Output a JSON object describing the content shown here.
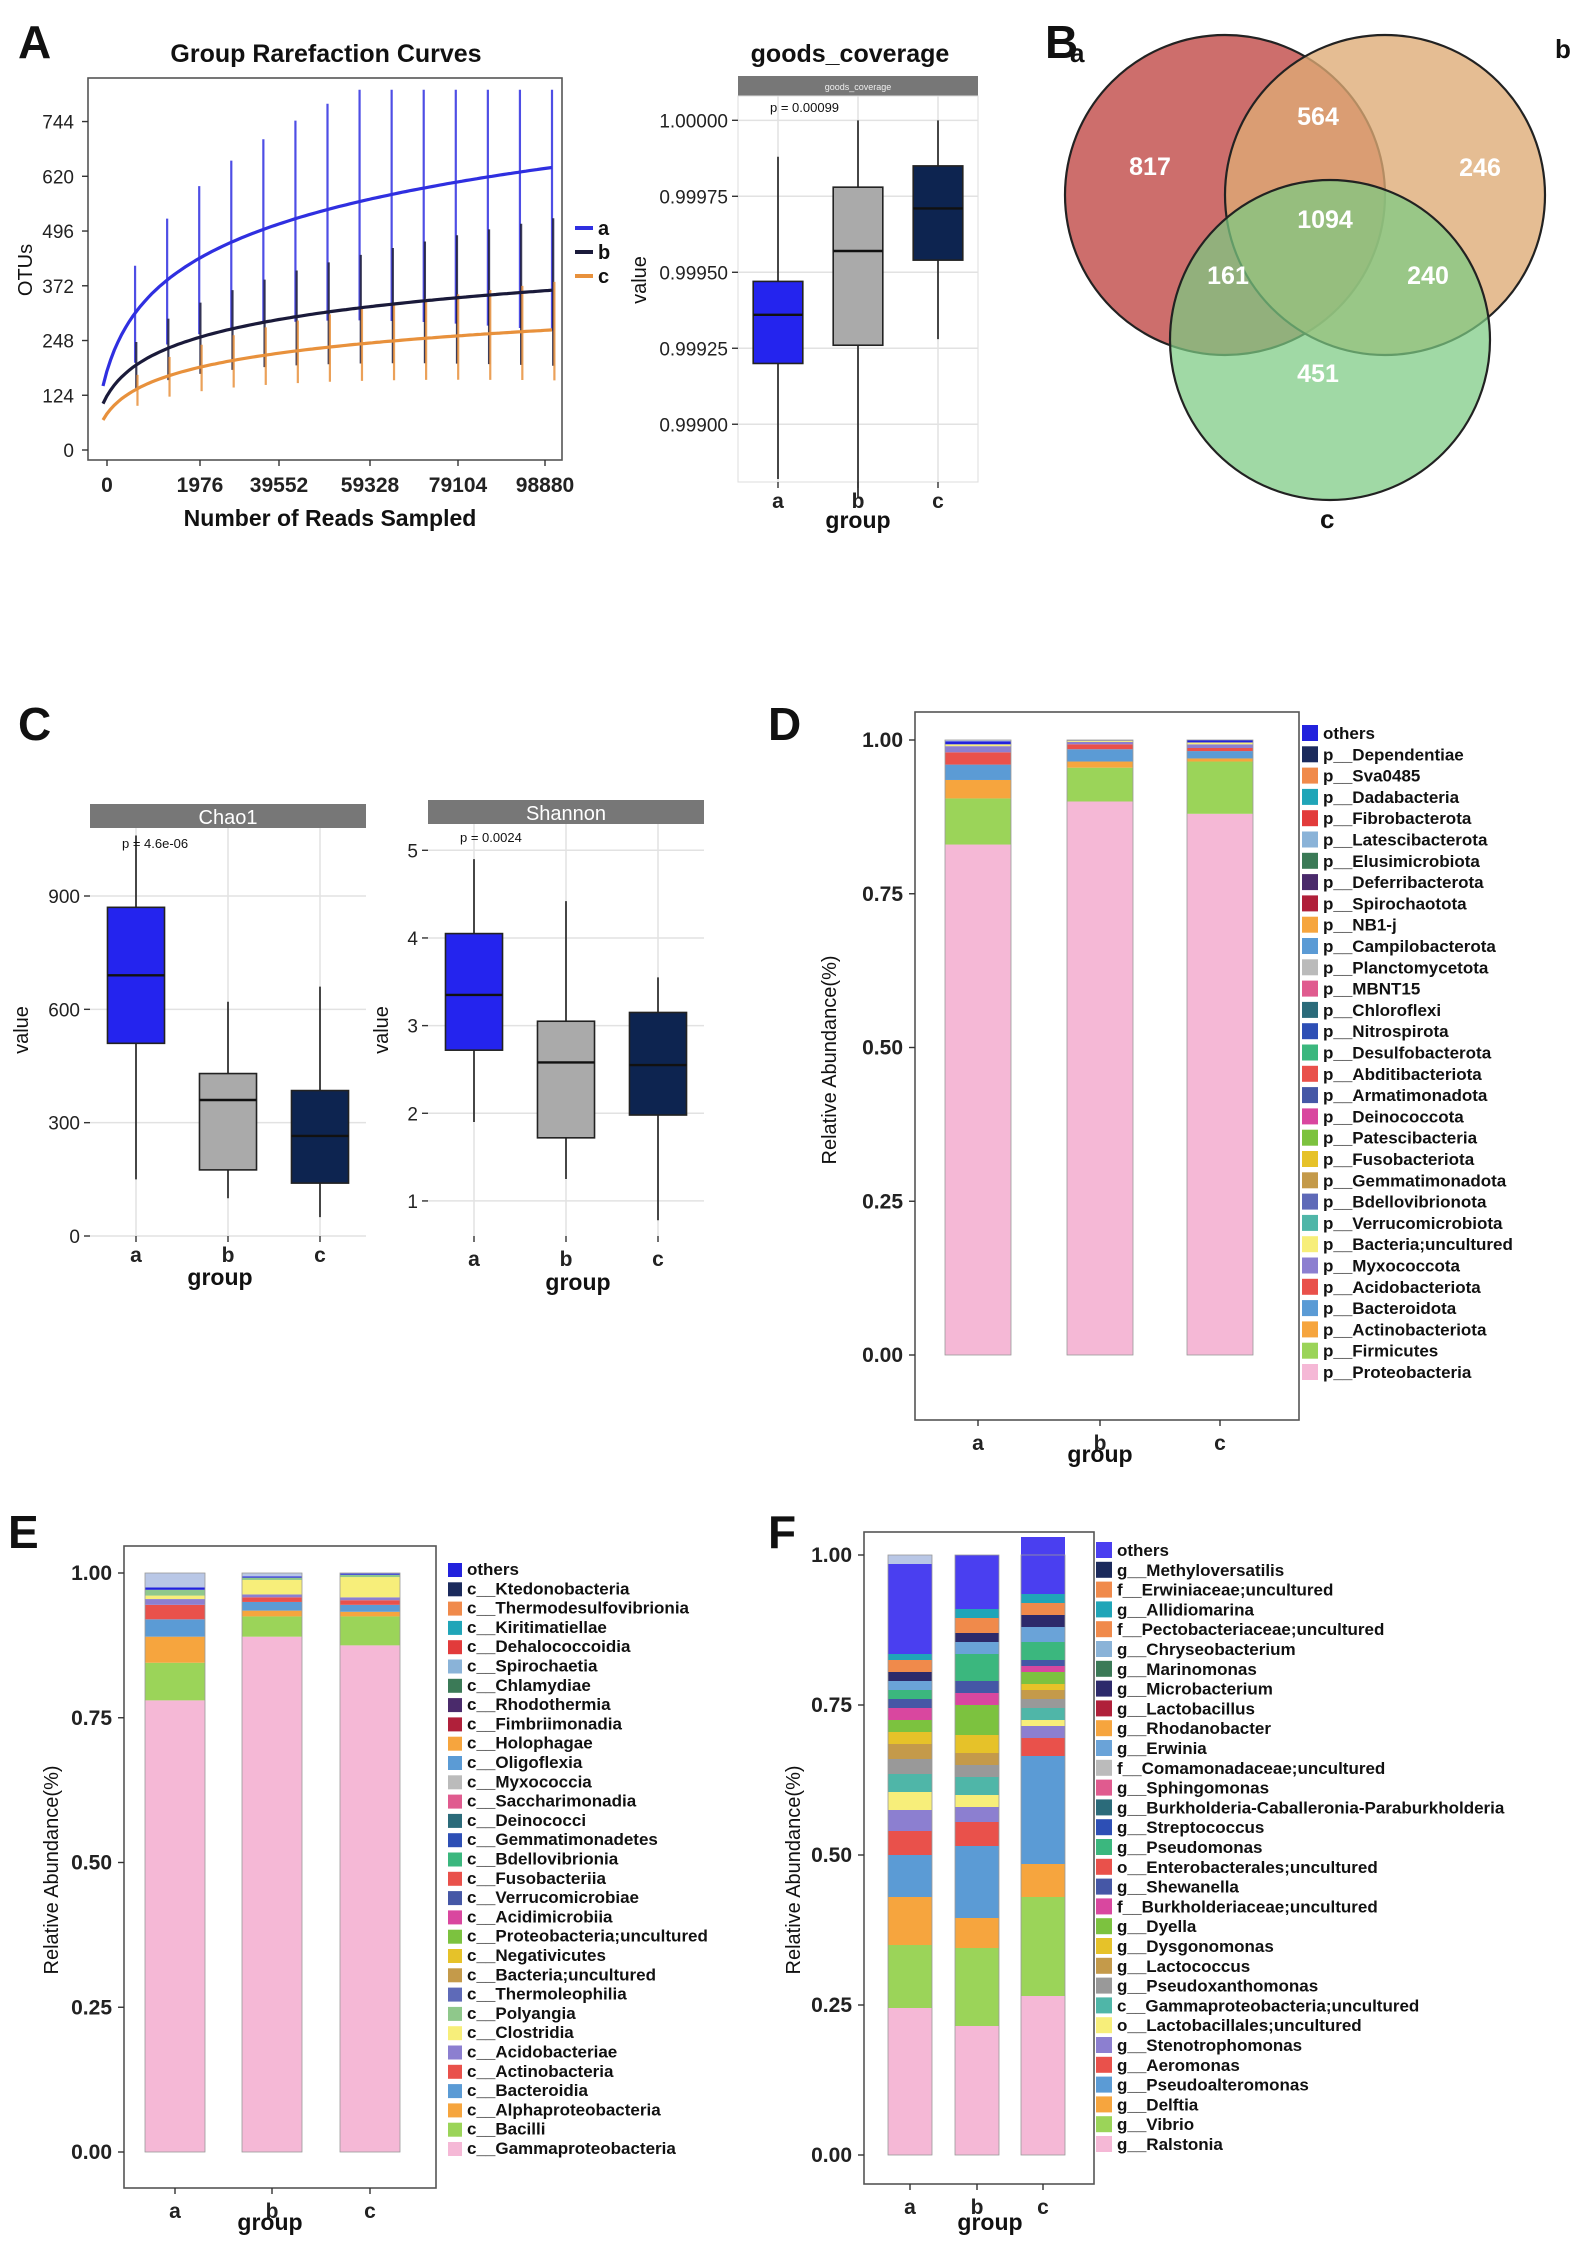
{
  "panels": {
    "A": "A",
    "B": "B",
    "C": "C",
    "D": "D",
    "E": "E",
    "F": "F"
  },
  "colors": {
    "a_blue": "#2f2fe0",
    "b_black": "#1a1a3a",
    "c_orange": "#e8913c",
    "box_a": "#2424ee",
    "box_b": "#aaaaaa",
    "box_c": "#0d2450",
    "venn_a": "#c9625f",
    "venn_b": "#deaa74",
    "venn_c": "#7ccb82",
    "strip": "#777777"
  },
  "chart_data": [
    {
      "id": "rarefaction",
      "type": "line",
      "title": "Group Rarefaction Curves",
      "xlabel": "Number of Reads Sampled",
      "ylabel": "OTUs",
      "xticks": [
        "0",
        "1976",
        "39552",
        "59328",
        "79104",
        "98880"
      ],
      "yticks": [
        "0",
        "124",
        "248",
        "372",
        "496",
        "620",
        "744"
      ],
      "ylim": [
        0,
        820
      ],
      "legend": [
        "a",
        "b",
        "c"
      ],
      "series": [
        {
          "name": "a",
          "start": 145,
          "end": 640
        },
        {
          "name": "b",
          "start": 105,
          "end": 362
        },
        {
          "name": "c",
          "start": 68,
          "end": 272
        }
      ]
    },
    {
      "id": "goods",
      "type": "box",
      "title": "goods_coverage",
      "strip_label": "goods_coverage",
      "pvalue": "p = 0.00099",
      "xlabel": "group",
      "ylabel": "value",
      "categories": [
        "a",
        "b",
        "c"
      ],
      "yticks": [
        "0.99900",
        "0.99925",
        "0.99950",
        "0.99975",
        "1.00000"
      ],
      "ylim": [
        0.99881,
        1.00008
      ],
      "boxes": [
        {
          "min": 0.99882,
          "q1": 0.9992,
          "median": 0.99936,
          "q3": 0.99947,
          "max": 0.99988
        },
        {
          "min": 0.99876,
          "q1": 0.99926,
          "median": 0.99957,
          "q3": 0.99978,
          "max": 1.0
        },
        {
          "min": 0.99928,
          "q1": 0.99954,
          "median": 0.99971,
          "q3": 0.99985,
          "max": 1.0
        }
      ]
    },
    {
      "id": "venn",
      "type": "venn",
      "sets": [
        "a",
        "b",
        "c"
      ],
      "regions": {
        "a_only": "817",
        "b_only": "246",
        "c_only": "451",
        "ab": "564",
        "ac": "161",
        "bc": "240",
        "abc": "1094"
      }
    },
    {
      "id": "chao1",
      "type": "box",
      "strip_label": "Chao1",
      "pvalue": "p = 4.6e-06",
      "xlabel": "group",
      "ylabel": "value",
      "categories": [
        "a",
        "b",
        "c"
      ],
      "yticks": [
        "0",
        "300",
        "600",
        "900"
      ],
      "ylim": [
        0,
        1080
      ],
      "boxes": [
        {
          "min": 150,
          "q1": 510,
          "median": 690,
          "q3": 870,
          "max": 1060
        },
        {
          "min": 100,
          "q1": 175,
          "median": 360,
          "q3": 430,
          "max": 620
        },
        {
          "min": 50,
          "q1": 140,
          "median": 265,
          "q3": 385,
          "max": 660
        }
      ]
    },
    {
      "id": "shannon",
      "type": "box",
      "strip_label": "Shannon",
      "pvalue": "p = 0.0024",
      "xlabel": "group",
      "ylabel": "value",
      "categories": [
        "a",
        "b",
        "c"
      ],
      "yticks": [
        "1",
        "2",
        "3",
        "4",
        "5"
      ],
      "ylim": [
        0.6,
        5.3
      ],
      "boxes": [
        {
          "min": 1.9,
          "q1": 2.72,
          "median": 3.35,
          "q3": 4.05,
          "max": 4.9
        },
        {
          "min": 1.25,
          "q1": 1.72,
          "median": 2.58,
          "q3": 3.05,
          "max": 4.42
        },
        {
          "min": 0.78,
          "q1": 1.98,
          "median": 2.55,
          "q3": 3.15,
          "max": 3.55
        }
      ]
    },
    {
      "id": "phylum",
      "type": "bar",
      "stacked": true,
      "xlabel": "group",
      "ylabel": "Relative Abundance(%)",
      "categories": [
        "a",
        "b",
        "c"
      ],
      "yticks": [
        "0.00",
        "0.25",
        "0.50",
        "0.75",
        "1.00"
      ],
      "legend": [
        "others",
        "p__Dependentiae",
        "p__Sva0485",
        "p__Dadabacteria",
        "p__Fibrobacterota",
        "p__Latescibacterota",
        "p__Elusimicrobiota",
        "p__Deferribacterota",
        "p__Spirochaotota",
        "p__NB1-j",
        "p__Campilobacterota",
        "p__Planctomycetota",
        "p__MBNT15",
        "p__Chloroflexi",
        "p__Nitrospirota",
        "p__Desulfobacterota",
        "p__Abditibacteriota",
        "p__Armatimonadota",
        "p__Deinococcota",
        "p__Patescibacteria",
        "p__Fusobacteriota",
        "p__Gemmatimonadota",
        "p__Bdellovibrionota",
        "p__Verrucomicrobiota",
        "p__Bacteria;uncultured",
        "p__Myxococcota",
        "p__Acidobacteriota",
        "p__Bacteroidota",
        "p__Actinobacteriota",
        "p__Firmicutes",
        "p__Proteobacteria"
      ],
      "series": [
        {
          "name": "p__Proteobacteria",
          "color": "#f5b8d6",
          "values": [
            0.83,
            0.9,
            0.88
          ]
        },
        {
          "name": "p__Firmicutes",
          "color": "#9bd459",
          "values": [
            0.075,
            0.055,
            0.085
          ]
        },
        {
          "name": "p__Actinobacteriota",
          "color": "#f6a53e",
          "values": [
            0.03,
            0.01,
            0.005
          ]
        },
        {
          "name": "p__Bacteroidota",
          "color": "#5b9bd5",
          "values": [
            0.025,
            0.02,
            0.012
          ]
        },
        {
          "name": "p__Acidobacteriota",
          "color": "#e9514b",
          "values": [
            0.02,
            0.008,
            0.005
          ]
        },
        {
          "name": "p__Myxococcota",
          "color": "#8c7fd0",
          "values": [
            0.01,
            0.004,
            0.006
          ]
        },
        {
          "name": "p__Bacteria;uncultured",
          "color": "#f7ee7a",
          "values": [
            0.003,
            0.002,
            0.003
          ]
        },
        {
          "name": "others",
          "color": "#2222dd",
          "values": [
            0.005,
            0.001,
            0.004
          ]
        }
      ]
    },
    {
      "id": "class",
      "type": "bar",
      "stacked": true,
      "xlabel": "group",
      "ylabel": "Relative Abundance(%)",
      "categories": [
        "a",
        "b",
        "c"
      ],
      "yticks": [
        "0.00",
        "0.25",
        "0.50",
        "0.75",
        "1.00"
      ],
      "legend": [
        "others",
        "c__Ktedonobacteria",
        "c__Thermodesulfovibrionia",
        "c__Kiritimatiellae",
        "c__Dehalococcoidia",
        "c__Spirochaetia",
        "c__Chlamydiae",
        "c__Rhodothermia",
        "c__Fimbriimonadia",
        "c__Holophagae",
        "c__Oligoflexia",
        "c__Myxococcia",
        "c__Saccharimonadia",
        "c__Deinococci",
        "c__Gemmatimonadetes",
        "c__Bdellovibrionia",
        "c__Fusobacteriia",
        "c__Verrucomicrobiae",
        "c__Acidimicrobiia",
        "c__Proteobacteria;uncultured",
        "c__Negativicutes",
        "c__Bacteria;uncultured",
        "c__Thermoleophilia",
        "c__Polyangia",
        "c__Clostridia",
        "c__Acidobacteriae",
        "c__Actinobacteria",
        "c__Bacteroidia",
        "c__Alphaproteobacteria",
        "c__Bacilli",
        "c__Gammaproteobacteria"
      ],
      "series": [
        {
          "name": "c__Gammaproteobacteria",
          "color": "#f5b8d6",
          "values": [
            0.78,
            0.89,
            0.875
          ]
        },
        {
          "name": "c__Bacilli",
          "color": "#9bd459",
          "values": [
            0.065,
            0.035,
            0.05
          ]
        },
        {
          "name": "c__Alphaproteobacteria",
          "color": "#f6a53e",
          "values": [
            0.045,
            0.01,
            0.008
          ]
        },
        {
          "name": "c__Bacteroidia",
          "color": "#5b9bd5",
          "values": [
            0.03,
            0.015,
            0.012
          ]
        },
        {
          "name": "c__Actinobacteria",
          "color": "#e9514b",
          "values": [
            0.025,
            0.008,
            0.008
          ]
        },
        {
          "name": "c__Acidobacteriae",
          "color": "#8c7fd0",
          "values": [
            0.01,
            0.005,
            0.005
          ]
        },
        {
          "name": "c__Clostridia",
          "color": "#f7ee7a",
          "values": [
            0.006,
            0.025,
            0.035
          ]
        },
        {
          "name": "c__Polyangia",
          "color": "#8fc88b",
          "values": [
            0.01,
            0.004,
            0.004
          ]
        },
        {
          "name": "others",
          "color": "#2222dd",
          "values": [
            0.004,
            0.002,
            0.002
          ]
        }
      ]
    },
    {
      "id": "genus",
      "type": "bar",
      "stacked": true,
      "xlabel": "group",
      "ylabel": "Relative Abundance(%)",
      "categories": [
        "a",
        "b",
        "c"
      ],
      "yticks": [
        "0.00",
        "0.25",
        "0.50",
        "0.75",
        "1.00"
      ],
      "legend": [
        "others",
        "g__Methyloversatilis",
        "f__Erwiniaceae;uncultured",
        "g__Allidiomarina",
        "f__Pectobacteriaceae;uncultured",
        "g__Chryseobacterium",
        "g__Marinomonas",
        "g__Microbacterium",
        "g__Lactobacillus",
        "g__Rhodanobacter",
        "g__Erwinia",
        "f__Comamonadaceae;uncultured",
        "g__Sphingomonas",
        "g__Burkholderia-Caballeronia-Paraburkholderia",
        "g__Streptococcus",
        "g__Pseudomonas",
        "o__Enterobacterales;uncultured",
        "g__Shewanella",
        "f__Burkholderiaceae;uncultured",
        "g__Dyella",
        "g__Dysgonomonas",
        "g__Lactococcus",
        "g__Pseudoxanthomonas",
        "c__Gammaproteobacteria;uncultured",
        "o__Lactobacillales;uncultured",
        "g__Stenotrophomonas",
        "g__Aeromonas",
        "g__Pseudoalteromonas",
        "g__Delftia",
        "g__Vibrio",
        "g__Ralstonia"
      ],
      "series": [
        {
          "name": "g__Ralstonia",
          "color": "#f5b8d6",
          "values": [
            0.245,
            0.215,
            0.265
          ]
        },
        {
          "name": "g__Vibrio",
          "color": "#9bd459",
          "values": [
            0.105,
            0.13,
            0.165
          ]
        },
        {
          "name": "g__Delftia",
          "color": "#f6a53e",
          "values": [
            0.08,
            0.05,
            0.055
          ]
        },
        {
          "name": "g__Pseudoalteromonas",
          "color": "#5b9bd5",
          "values": [
            0.07,
            0.12,
            0.18
          ]
        },
        {
          "name": "g__Aeromonas",
          "color": "#e9514b",
          "values": [
            0.04,
            0.04,
            0.03
          ]
        },
        {
          "name": "g__Stenotrophomonas",
          "color": "#8c7fd0",
          "values": [
            0.035,
            0.025,
            0.02
          ]
        },
        {
          "name": "o__Lactobacillales;uncultured",
          "color": "#f7ee7a",
          "values": [
            0.03,
            0.02,
            0.01
          ]
        },
        {
          "name": "c__Gammaproteobacteria;uncultured",
          "color": "#4fb6a8",
          "values": [
            0.03,
            0.03,
            0.02
          ]
        },
        {
          "name": "g__Pseudoxanthomonas",
          "color": "#999999",
          "values": [
            0.025,
            0.02,
            0.015
          ]
        },
        {
          "name": "g__Lactococcus",
          "color": "#c49a4a",
          "values": [
            0.025,
            0.02,
            0.015
          ]
        },
        {
          "name": "g__Dysgonomonas",
          "color": "#e6c229",
          "values": [
            0.02,
            0.03,
            0.01
          ]
        },
        {
          "name": "g__Dyella",
          "color": "#7cc23f",
          "values": [
            0.02,
            0.05,
            0.02
          ]
        },
        {
          "name": "f__Burkholderiaceae;uncultured",
          "color": "#d9479f",
          "values": [
            0.02,
            0.02,
            0.01
          ]
        },
        {
          "name": "g__Shewanella",
          "color": "#4557a6",
          "values": [
            0.015,
            0.02,
            0.01
          ]
        },
        {
          "name": "g__Pseudomonas",
          "color": "#3bb77e",
          "values": [
            0.015,
            0.045,
            0.03
          ]
        },
        {
          "name": "g__Erwinia",
          "color": "#6aa3d8",
          "values": [
            0.015,
            0.02,
            0.025
          ]
        },
        {
          "name": "g__Microbacterium",
          "color": "#2d2a6b",
          "values": [
            0.015,
            0.015,
            0.02
          ]
        },
        {
          "name": "f__Pectobacteriaceae;uncultured",
          "color": "#f08a4b",
          "values": [
            0.02,
            0.025,
            0.02
          ]
        },
        {
          "name": "g__Allidiomarina",
          "color": "#20a5b8",
          "values": [
            0.01,
            0.015,
            0.015
          ]
        },
        {
          "name": "others",
          "color": "#4a3ff0",
          "values": [
            0.15,
            0.09,
            0.095
          ]
        }
      ]
    }
  ]
}
